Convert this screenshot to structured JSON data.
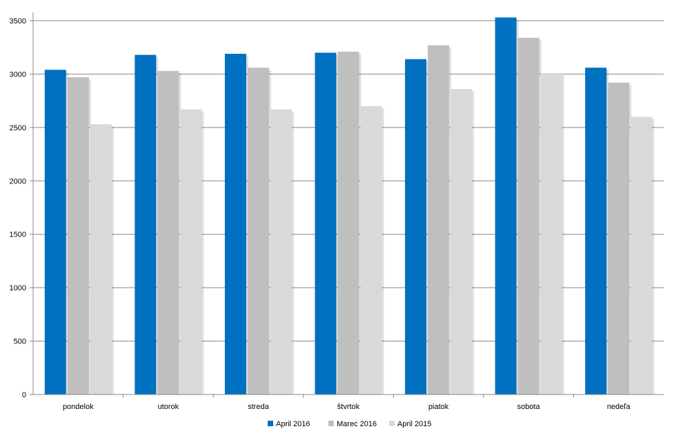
{
  "chart_data": {
    "type": "bar",
    "title": "",
    "xlabel": "",
    "ylabel": "",
    "categories": [
      "pondelok",
      "utorok",
      "streda",
      "štvrtok",
      "piatok",
      "sobota",
      "nedeľa"
    ],
    "series": [
      {
        "name": "April 2016",
        "color": "#0070c0",
        "values": [
          3040,
          3180,
          3190,
          3200,
          3140,
          3530,
          3060
        ]
      },
      {
        "name": "Marec 2016",
        "color": "#bfbfbf",
        "values": [
          2970,
          3030,
          3060,
          3210,
          3270,
          3340,
          2920
        ]
      },
      {
        "name": "April 2015",
        "color": "#d9d9d9",
        "values": [
          2530,
          2670,
          2670,
          2700,
          2860,
          3010,
          2600
        ]
      }
    ],
    "ylim": [
      0,
      3500
    ],
    "yticks": [
      "0",
      "500",
      "1000",
      "1500",
      "2000",
      "2500",
      "3000",
      "3500"
    ],
    "grid": true,
    "legend_position": "bottom-center"
  }
}
